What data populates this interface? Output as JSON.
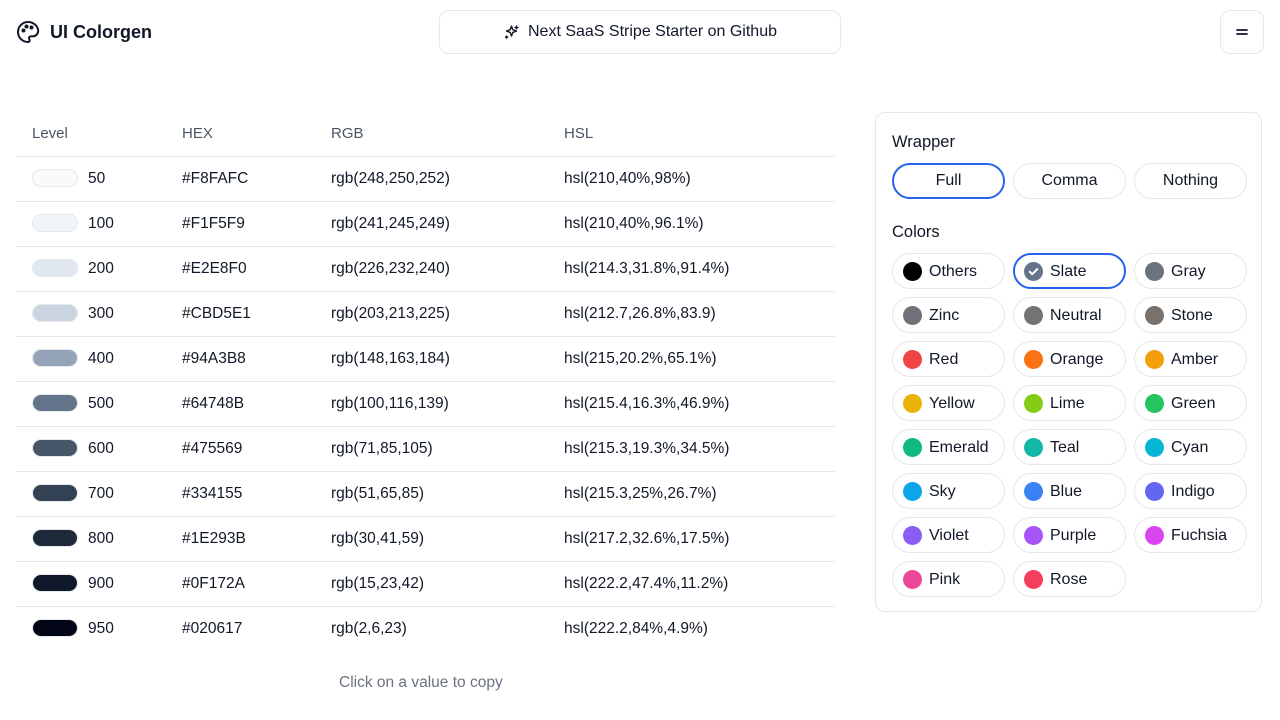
{
  "header": {
    "app_title": "UI Colorgen",
    "logo_icon": "palette-icon",
    "promo_label": "Next SaaS Stripe Starter on Github",
    "promo_icon": "sparkles-icon",
    "menu_icon": "menu-icon"
  },
  "table": {
    "columns": [
      "Level",
      "HEX",
      "RGB",
      "HSL"
    ],
    "rows": [
      {
        "level": "50",
        "hex": "#F8FAFC",
        "rgb": "rgb(248,250,252)",
        "hsl": "hsl(210,40%,98%)"
      },
      {
        "level": "100",
        "hex": "#F1F5F9",
        "rgb": "rgb(241,245,249)",
        "hsl": "hsl(210,40%,96.1%)"
      },
      {
        "level": "200",
        "hex": "#E2E8F0",
        "rgb": "rgb(226,232,240)",
        "hsl": "hsl(214.3,31.8%,91.4%)"
      },
      {
        "level": "300",
        "hex": "#CBD5E1",
        "rgb": "rgb(203,213,225)",
        "hsl": "hsl(212.7,26.8%,83.9)"
      },
      {
        "level": "400",
        "hex": "#94A3B8",
        "rgb": "rgb(148,163,184)",
        "hsl": "hsl(215,20.2%,65.1%)"
      },
      {
        "level": "500",
        "hex": "#64748B",
        "rgb": "rgb(100,116,139)",
        "hsl": "hsl(215.4,16.3%,46.9%)"
      },
      {
        "level": "600",
        "hex": "#475569",
        "rgb": "rgb(71,85,105)",
        "hsl": "hsl(215.3,19.3%,34.5%)"
      },
      {
        "level": "700",
        "hex": "#334155",
        "rgb": "rgb(51,65,85)",
        "hsl": "hsl(215.3,25%,26.7%)"
      },
      {
        "level": "800",
        "hex": "#1E293B",
        "rgb": "rgb(30,41,59)",
        "hsl": "hsl(217.2,32.6%,17.5%)"
      },
      {
        "level": "900",
        "hex": "#0F172A",
        "rgb": "rgb(15,23,42)",
        "hsl": "hsl(222.2,47.4%,11.2%)"
      },
      {
        "level": "950",
        "hex": "#020617",
        "rgb": "rgb(2,6,23)",
        "hsl": "hsl(222.2,84%,4.9%)"
      }
    ],
    "hint": "Click on a value to copy"
  },
  "panel": {
    "wrapper_title": "Wrapper",
    "wrapper_options": [
      "Full",
      "Comma",
      "Nothing"
    ],
    "wrapper_selected": "Full",
    "colors_title": "Colors",
    "color_selected": "Slate",
    "accent_color": "#2563eb",
    "colors": [
      {
        "name": "Others",
        "color": "#000000"
      },
      {
        "name": "Slate",
        "color": "#64748b"
      },
      {
        "name": "Gray",
        "color": "#6b7280"
      },
      {
        "name": "Zinc",
        "color": "#71717a"
      },
      {
        "name": "Neutral",
        "color": "#737373"
      },
      {
        "name": "Stone",
        "color": "#78716c"
      },
      {
        "name": "Red",
        "color": "#ef4444"
      },
      {
        "name": "Orange",
        "color": "#f97316"
      },
      {
        "name": "Amber",
        "color": "#f59e0b"
      },
      {
        "name": "Yellow",
        "color": "#eab308"
      },
      {
        "name": "Lime",
        "color": "#84cc16"
      },
      {
        "name": "Green",
        "color": "#22c55e"
      },
      {
        "name": "Emerald",
        "color": "#10b981"
      },
      {
        "name": "Teal",
        "color": "#14b8a6"
      },
      {
        "name": "Cyan",
        "color": "#06b6d4"
      },
      {
        "name": "Sky",
        "color": "#0ea5e9"
      },
      {
        "name": "Blue",
        "color": "#3b82f6"
      },
      {
        "name": "Indigo",
        "color": "#6366f1"
      },
      {
        "name": "Violet",
        "color": "#8b5cf6"
      },
      {
        "name": "Purple",
        "color": "#a855f7"
      },
      {
        "name": "Fuchsia",
        "color": "#d946ef"
      },
      {
        "name": "Pink",
        "color": "#ec4899"
      },
      {
        "name": "Rose",
        "color": "#f43f5e"
      }
    ]
  }
}
